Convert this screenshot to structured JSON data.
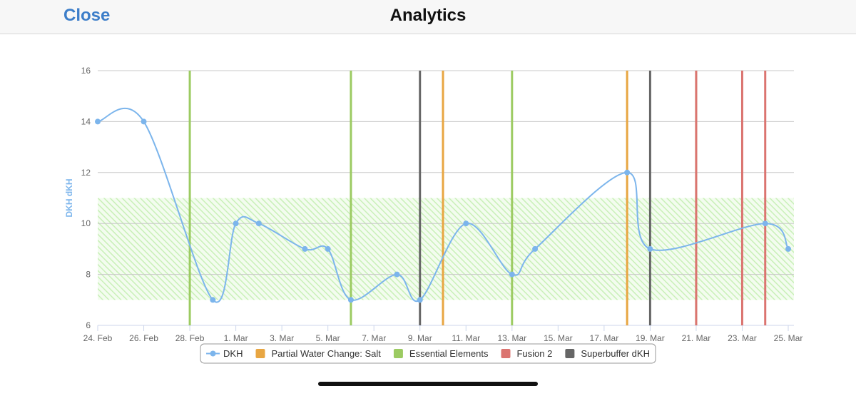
{
  "header": {
    "close": "Close",
    "title": "Analytics"
  },
  "chart_data": {
    "type": "line",
    "y_label": "DKH dKH",
    "x": [
      "24. Feb",
      "26. Feb",
      "29. Feb",
      "1. Mar",
      "2. Mar",
      "4. Mar",
      "5. Mar",
      "6. Mar",
      "8. Mar",
      "9. Mar",
      "11. Mar",
      "13. Mar",
      "14. Mar",
      "18. Mar",
      "19. Mar",
      "24. Mar",
      "25. Mar"
    ],
    "series": [
      {
        "name": "DKH",
        "color": "#7cb5ec",
        "values": [
          14,
          14,
          7,
          10,
          10,
          9,
          9,
          7,
          8,
          7,
          10,
          8,
          9,
          12,
          9,
          10,
          9
        ]
      }
    ],
    "events": [
      {
        "name": "Partial Water Change: Salt",
        "color": "#e8a642",
        "x": [
          "10. Mar",
          "18. Mar"
        ]
      },
      {
        "name": "Essential Elements",
        "color": "#9ccb62",
        "x": [
          "28. Feb",
          "6. Mar",
          "13. Mar",
          "21. Mar"
        ]
      },
      {
        "name": "Fusion 2",
        "color": "#db7470",
        "x": [
          "21. Mar",
          "23. Mar",
          "24. Mar"
        ]
      },
      {
        "name": "Superbuffer dKH",
        "color": "#666666",
        "x": [
          "9. Mar",
          "19. Mar"
        ]
      }
    ],
    "band": {
      "range": [
        7,
        11
      ],
      "color": "#c9f0b8"
    },
    "xlim": [
      "24. Feb",
      "25. Mar"
    ],
    "xticks": [
      "24. Feb",
      "26. Feb",
      "28. Feb",
      "1. Mar",
      "3. Mar",
      "5. Mar",
      "7. Mar",
      "9. Mar",
      "11. Mar",
      "13. Mar",
      "15. Mar",
      "17. Mar",
      "19. Mar",
      "21. Mar",
      "23. Mar",
      "25. Mar"
    ],
    "ylim": [
      6,
      16
    ],
    "yticks": [
      6,
      8,
      10,
      12,
      14,
      16
    ],
    "grid": true
  }
}
